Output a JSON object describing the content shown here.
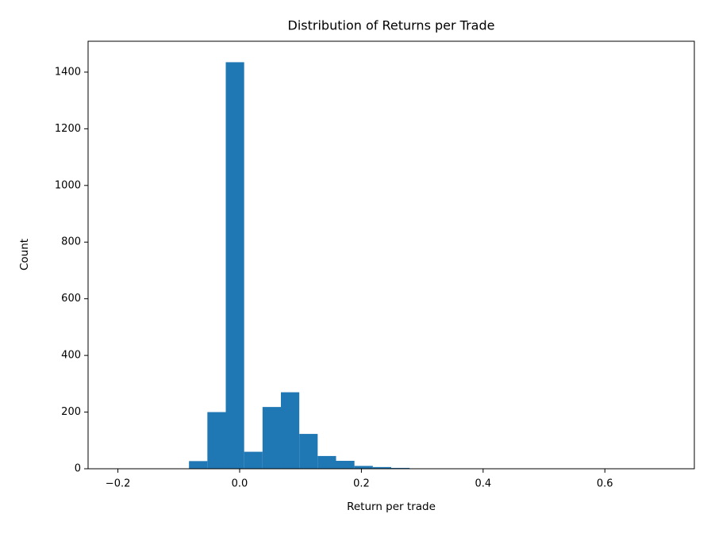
{
  "chart_data": {
    "type": "histogram",
    "title": "Distribution of Returns per Trade",
    "x_label": "Return per trade",
    "y_label": "Count",
    "color": "#1f77b4",
    "bins": [
      -0.204,
      -0.1738,
      -0.1436,
      -0.1134,
      -0.0832,
      -0.053,
      -0.0228,
      0.0074,
      0.0376,
      0.0678,
      0.098,
      0.1282,
      0.1584,
      0.1886,
      0.2188,
      0.249,
      0.2792,
      0.3094,
      0.3396,
      0.3698,
      0.4,
      0.4302,
      0.4604,
      0.4906,
      0.5208,
      0.551,
      0.5812,
      0.6114,
      0.6416,
      0.6718,
      0.702
    ],
    "counts": [
      1,
      0,
      0,
      0,
      27,
      200,
      1435,
      60,
      218,
      270,
      123,
      45,
      28,
      10,
      6,
      3,
      1,
      1,
      0,
      0,
      0,
      0,
      0,
      0,
      0,
      0,
      0,
      0,
      0,
      1
    ],
    "xlim": [
      -0.249,
      0.747
    ],
    "ylim": [
      0,
      1509
    ],
    "xticks": [
      {
        "value": -0.2,
        "label": "−0.2"
      },
      {
        "value": 0,
        "label": "0.0"
      },
      0.2,
      0.4,
      0.6
    ],
    "yticks": [
      0,
      200,
      400,
      600,
      800,
      1000,
      1200,
      1400
    ],
    "grid": false
  }
}
